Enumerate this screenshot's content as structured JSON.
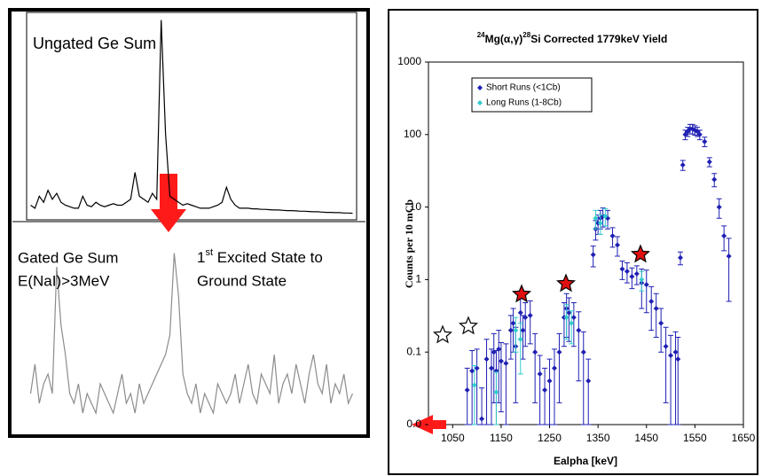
{
  "chart_data": [
    {
      "type": "line",
      "annotations": [
        "Ungated Ge Sum"
      ],
      "color": "#000000",
      "ylim": [
        0,
        6800
      ],
      "values": [
        400,
        300,
        700,
        500,
        900,
        600,
        800,
        500,
        400,
        350,
        300,
        300,
        700,
        400,
        350,
        500,
        400,
        350,
        400,
        450,
        400,
        400,
        500,
        600,
        1500,
        700,
        600,
        500,
        800,
        600,
        6600,
        2800,
        700,
        600,
        500,
        400,
        450,
        400,
        350,
        300,
        300,
        300,
        350,
        400,
        500,
        1000,
        600,
        400,
        300,
        300,
        300,
        280,
        280,
        260,
        260,
        250,
        240,
        240,
        230,
        220,
        220,
        210,
        200,
        200,
        190,
        180,
        180,
        170,
        160,
        160,
        150,
        150,
        140,
        140,
        130
      ]
    },
    {
      "type": "line",
      "annotations": [
        "Gated Ge Sum",
        "E(NaI)>3MeV"
      ],
      "annotation_parts": [
        "1",
        "st",
        " Excited State to",
        "Ground State"
      ],
      "color": "#8c8c8c",
      "ylim": [
        0,
        100
      ],
      "values": [
        20,
        35,
        15,
        25,
        30,
        20,
        85,
        55,
        40,
        20,
        15,
        25,
        10,
        20,
        15,
        10,
        25,
        20,
        15,
        10,
        20,
        30,
        15,
        20,
        10,
        25,
        15,
        20,
        25,
        30,
        35,
        40,
        50,
        92,
        70,
        30,
        20,
        15,
        25,
        10,
        20,
        15,
        10,
        25,
        20,
        15,
        20,
        30,
        15,
        25,
        35,
        20,
        15,
        30,
        25,
        20,
        40,
        15,
        25,
        30,
        20,
        35,
        25,
        15,
        30,
        40,
        25,
        20,
        35,
        15,
        25,
        20,
        30,
        15,
        20
      ]
    },
    {
      "type": "scatter",
      "title_parts": [
        "24",
        "Mg(α,γ)",
        "28",
        "Si Corrected 1779keV Yield"
      ],
      "x_label": "Ealpha [keV]",
      "y_label": "Counts per 10 mCb",
      "log_y": true,
      "legend": "top-left",
      "xlim": [
        1000,
        1650
      ],
      "xticks": [
        1050,
        1150,
        1250,
        1350,
        1450,
        1550,
        1650
      ],
      "ylim": [
        0.01,
        1000
      ],
      "yticks": [
        {
          "value": 0.01,
          "label": "0.0"
        },
        0.1,
        1,
        10,
        100,
        1000
      ],
      "series": [
        {
          "name": "Short Runs (<1Cb)",
          "color": "#1f1fb4",
          "x": [
            1080,
            1090,
            1100,
            1110,
            1120,
            1130,
            1135,
            1140,
            1145,
            1150,
            1160,
            1170,
            1175,
            1180,
            1190,
            1195,
            1200,
            1210,
            1220,
            1230,
            1240,
            1250,
            1260,
            1270,
            1280,
            1285,
            1290,
            1300,
            1310,
            1320,
            1330,
            1340,
            1345,
            1350,
            1355,
            1360,
            1370,
            1380,
            1390,
            1400,
            1410,
            1420,
            1430,
            1440,
            1450,
            1460,
            1470,
            1480,
            1490,
            1500,
            1510,
            1515,
            1520,
            1525,
            1530,
            1535,
            1540,
            1545,
            1550,
            1555,
            1560,
            1570,
            1580,
            1590,
            1600,
            1610,
            1620
          ],
          "values": [
            0.03,
            0.055,
            0.06,
            0.012,
            0.08,
            0.06,
            0.1,
            0.055,
            0.11,
            0.075,
            0.07,
            0.2,
            0.25,
            0.12,
            0.35,
            0.2,
            0.3,
            0.32,
            0.1,
            0.05,
            0.03,
            0.04,
            0.06,
            0.1,
            0.3,
            0.4,
            0.35,
            0.3,
            0.2,
            0.1,
            0.04,
            2.2,
            5,
            6,
            7,
            7.5,
            7,
            4,
            3,
            1.4,
            1.3,
            1.1,
            1.2,
            0.9,
            0.85,
            0.5,
            0.4,
            0.25,
            0.12,
            0.09,
            0.1,
            0.08,
            2,
            38,
            100,
            110,
            120,
            120,
            115,
            110,
            100,
            80,
            42,
            24,
            10,
            4,
            2.1
          ],
          "errors": [
            0.03,
            0.05,
            0.05,
            0.02,
            0.07,
            0.05,
            0.08,
            0.05,
            0.09,
            0.06,
            0.06,
            0.12,
            0.15,
            0.1,
            0.2,
            0.12,
            0.18,
            0.19,
            0.08,
            0.04,
            0.03,
            0.04,
            0.05,
            0.08,
            0.18,
            0.24,
            0.21,
            0.18,
            0.16,
            0.09,
            0.04,
            0.7,
            1.5,
            1.8,
            2,
            2.2,
            2,
            1.2,
            0.9,
            0.4,
            0.4,
            0.35,
            0.35,
            0.5,
            0.5,
            0.3,
            0.24,
            0.15,
            0.1,
            0.08,
            0.09,
            0.08,
            0.4,
            6,
            15,
            16,
            18,
            18,
            17,
            16,
            15,
            12,
            6,
            5,
            3,
            1.5,
            1.6
          ]
        },
        {
          "name": "Long Runs (1-8Cb)",
          "color": "#33cccc",
          "x": [
            1095,
            1140,
            1180,
            1190,
            1285,
            1295,
            1345,
            1355,
            1365,
            1440
          ],
          "values": [
            0.035,
            0.028,
            0.2,
            0.15,
            0.3,
            0.25,
            7,
            6,
            7.5,
            1
          ],
          "errors": [
            0.03,
            0.025,
            0.1,
            0.1,
            0.15,
            0.12,
            2,
            1.8,
            2,
            0.3
          ]
        }
      ]
    }
  ]
}
